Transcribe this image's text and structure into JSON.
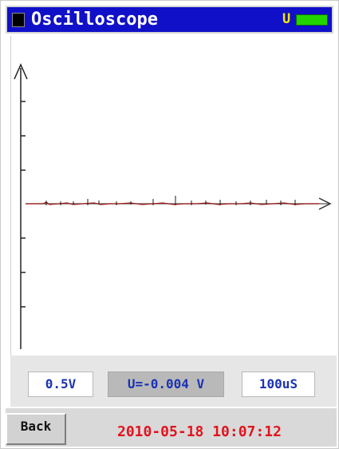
{
  "header": {
    "title": "Oscilloscope",
    "usb_label": "U",
    "battery_color": "#22d400"
  },
  "readouts": {
    "volts_per_div": "0.5V",
    "measured_voltage": "U=-0.004 V",
    "time_per_div": "100uS"
  },
  "footer": {
    "back_label": "Back",
    "datetime": "2010-05-18 10:07:12"
  },
  "colors": {
    "title_bar": "#1010c8",
    "trace": "#a01818",
    "readout_text": "#1a33b3",
    "datetime_text": "#e0141e"
  }
}
